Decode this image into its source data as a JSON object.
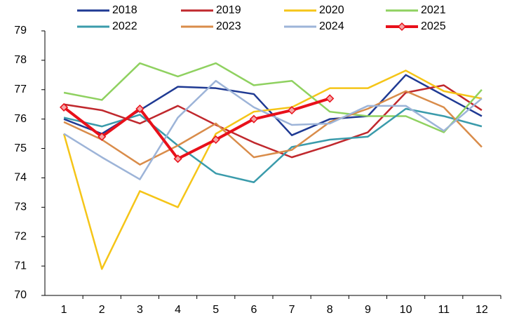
{
  "chart_data": {
    "type": "line",
    "categories": [
      1,
      2,
      3,
      4,
      5,
      6,
      7,
      8,
      9,
      10,
      11,
      12
    ],
    "series": [
      {
        "name": "2018",
        "color": "#1f3a93",
        "values": [
          76.0,
          75.5,
          76.3,
          77.1,
          77.05,
          76.85,
          75.45,
          76.0,
          76.1,
          77.5,
          76.8,
          76.1
        ]
      },
      {
        "name": "2019",
        "color": "#c0282d",
        "values": [
          76.5,
          76.3,
          75.85,
          76.45,
          75.8,
          75.2,
          74.7,
          75.1,
          75.55,
          76.9,
          77.15,
          76.3
        ]
      },
      {
        "name": "2020",
        "color": "#f5c518",
        "values": [
          75.5,
          70.9,
          73.55,
          73.0,
          75.5,
          76.25,
          76.4,
          77.05,
          77.05,
          77.65,
          76.95,
          76.7
        ]
      },
      {
        "name": "2021",
        "color": "#8fd160",
        "values": [
          76.9,
          76.65,
          77.9,
          77.45,
          77.9,
          77.15,
          77.3,
          76.25,
          76.1,
          76.1,
          75.55,
          77.0
        ]
      },
      {
        "name": "2022",
        "color": "#3a9bab",
        "values": [
          76.05,
          75.75,
          76.15,
          75.1,
          74.15,
          73.85,
          75.05,
          75.3,
          75.4,
          76.35,
          76.1,
          75.75
        ]
      },
      {
        "name": "2023",
        "color": "#d98c4a",
        "values": [
          75.9,
          75.3,
          74.45,
          75.1,
          75.85,
          74.7,
          74.95,
          75.9,
          76.35,
          76.95,
          76.4,
          75.05
        ]
      },
      {
        "name": "2024",
        "color": "#9db4d8",
        "values": [
          75.5,
          74.7,
          73.95,
          76.05,
          77.3,
          76.4,
          75.8,
          75.85,
          76.45,
          76.45,
          75.6,
          76.7
        ]
      },
      {
        "name": "2025",
        "color": "#e8101a",
        "markers": true,
        "values": [
          76.4,
          75.4,
          76.35,
          74.65,
          75.3,
          76.0,
          76.3,
          76.7,
          null,
          null,
          null,
          null
        ]
      }
    ],
    "ylim": [
      70,
      79
    ],
    "yticks": [
      70,
      71,
      72,
      73,
      74,
      75,
      76,
      77,
      78,
      79
    ],
    "grid": false
  }
}
